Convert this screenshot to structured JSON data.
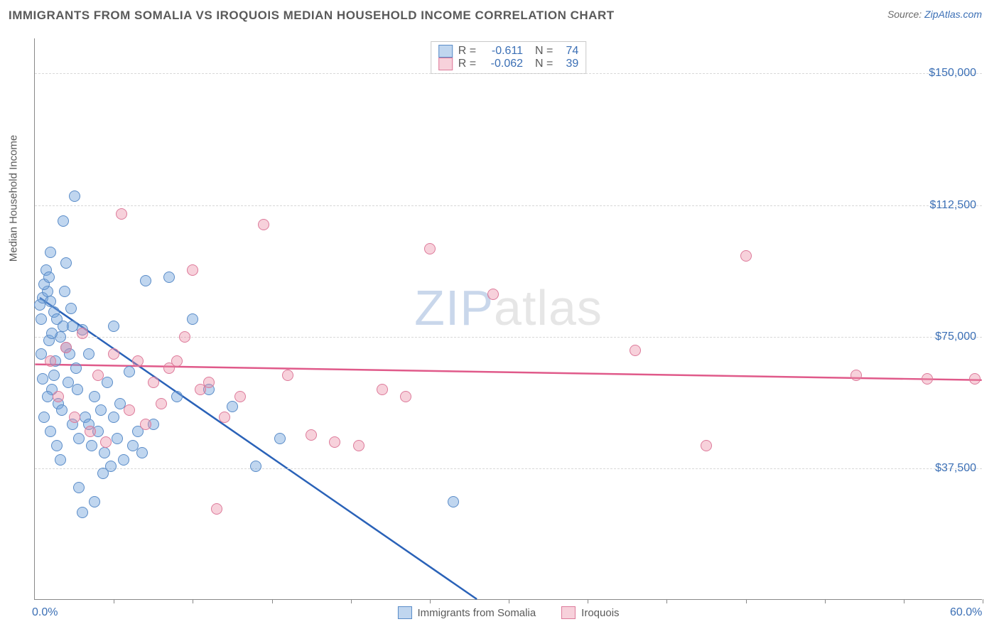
{
  "header": {
    "title": "IMMIGRANTS FROM SOMALIA VS IROQUOIS MEDIAN HOUSEHOLD INCOME CORRELATION CHART",
    "source_prefix": "Source: ",
    "source_link": "ZipAtlas.com"
  },
  "chart": {
    "type": "scatter",
    "y_axis_title": "Median Household Income",
    "background_color": "#ffffff",
    "grid_color": "#d8d8d8",
    "xlim": [
      0,
      60
    ],
    "ylim": [
      0,
      160000
    ],
    "xtick_positions": [
      5,
      10,
      15,
      20,
      25,
      30,
      35,
      40,
      45,
      50,
      55,
      60
    ],
    "xticks_labeled": [
      {
        "pos": 0,
        "label": "0.0%"
      },
      {
        "pos": 60,
        "label": "60.0%"
      }
    ],
    "yticks": [
      {
        "value": 37500,
        "label": "$37,500"
      },
      {
        "value": 75000,
        "label": "$75,000"
      },
      {
        "value": 112500,
        "label": "$112,500"
      },
      {
        "value": 150000,
        "label": "$150,000"
      }
    ],
    "watermark": {
      "zip": "ZIP",
      "atlas": "atlas"
    },
    "series": [
      {
        "name": "Immigrants from Somalia",
        "color_fill": "rgba(115,165,220,0.45)",
        "color_stroke": "#5a8cc8",
        "line_color": "#2a62b8",
        "R": "-0.611",
        "N": "74",
        "trend": {
          "x1": 0.3,
          "y1": 86000,
          "x2": 28,
          "y2": 0
        },
        "points": [
          [
            0.3,
            84000
          ],
          [
            0.5,
            86000
          ],
          [
            0.8,
            88000
          ],
          [
            0.6,
            90000
          ],
          [
            1.0,
            85000
          ],
          [
            1.2,
            82000
          ],
          [
            0.7,
            94000
          ],
          [
            1.4,
            80000
          ],
          [
            1.0,
            99000
          ],
          [
            1.6,
            75000
          ],
          [
            0.4,
            70000
          ],
          [
            1.8,
            78000
          ],
          [
            0.9,
            74000
          ],
          [
            2.0,
            72000
          ],
          [
            1.3,
            68000
          ],
          [
            0.5,
            63000
          ],
          [
            2.3,
            83000
          ],
          [
            1.1,
            60000
          ],
          [
            2.6,
            66000
          ],
          [
            0.8,
            58000
          ],
          [
            1.5,
            56000
          ],
          [
            3.0,
            77000
          ],
          [
            1.7,
            54000
          ],
          [
            0.6,
            52000
          ],
          [
            2.1,
            62000
          ],
          [
            1.9,
            88000
          ],
          [
            3.4,
            70000
          ],
          [
            2.7,
            60000
          ],
          [
            0.4,
            80000
          ],
          [
            3.8,
            58000
          ],
          [
            1.2,
            64000
          ],
          [
            4.2,
            54000
          ],
          [
            2.4,
            50000
          ],
          [
            4.6,
            62000
          ],
          [
            1.0,
            48000
          ],
          [
            5.0,
            78000
          ],
          [
            2.8,
            46000
          ],
          [
            5.4,
            56000
          ],
          [
            1.4,
            44000
          ],
          [
            6.0,
            65000
          ],
          [
            3.2,
            52000
          ],
          [
            6.5,
            48000
          ],
          [
            2.0,
            96000
          ],
          [
            7.0,
            91000
          ],
          [
            3.6,
            44000
          ],
          [
            1.6,
            40000
          ],
          [
            8.5,
            92000
          ],
          [
            4.0,
            48000
          ],
          [
            2.2,
            70000
          ],
          [
            9.0,
            58000
          ],
          [
            4.4,
            42000
          ],
          [
            2.5,
            115000
          ],
          [
            10.0,
            80000
          ],
          [
            4.8,
            38000
          ],
          [
            3.0,
            25000
          ],
          [
            11.0,
            60000
          ],
          [
            5.2,
            46000
          ],
          [
            2.8,
            32000
          ],
          [
            12.5,
            55000
          ],
          [
            5.6,
            40000
          ],
          [
            3.4,
            50000
          ],
          [
            14.0,
            38000
          ],
          [
            6.2,
            44000
          ],
          [
            3.8,
            28000
          ],
          [
            15.5,
            46000
          ],
          [
            6.8,
            42000
          ],
          [
            4.3,
            36000
          ],
          [
            26.5,
            28000
          ],
          [
            7.5,
            50000
          ],
          [
            5.0,
            52000
          ],
          [
            1.8,
            108000
          ],
          [
            2.4,
            78000
          ],
          [
            0.9,
            92000
          ],
          [
            1.1,
            76000
          ]
        ]
      },
      {
        "name": "Iroquois",
        "color_fill": "rgba(235,140,165,0.40)",
        "color_stroke": "#dd7a9a",
        "line_color": "#e05a8a",
        "R": "-0.062",
        "N": "39",
        "trend": {
          "x1": 0,
          "y1": 67000,
          "x2": 60,
          "y2": 62500
        },
        "points": [
          [
            1.0,
            68000
          ],
          [
            2.0,
            72000
          ],
          [
            1.5,
            58000
          ],
          [
            3.0,
            76000
          ],
          [
            2.5,
            52000
          ],
          [
            4.0,
            64000
          ],
          [
            3.5,
            48000
          ],
          [
            5.0,
            70000
          ],
          [
            4.5,
            45000
          ],
          [
            6.5,
            68000
          ],
          [
            5.5,
            110000
          ],
          [
            7.5,
            62000
          ],
          [
            6.0,
            54000
          ],
          [
            8.5,
            66000
          ],
          [
            7.0,
            50000
          ],
          [
            9.5,
            75000
          ],
          [
            8.0,
            56000
          ],
          [
            10.5,
            60000
          ],
          [
            9.0,
            68000
          ],
          [
            11.5,
            26000
          ],
          [
            10.0,
            94000
          ],
          [
            13.0,
            58000
          ],
          [
            11.0,
            62000
          ],
          [
            14.5,
            107000
          ],
          [
            12.0,
            52000
          ],
          [
            16.0,
            64000
          ],
          [
            17.5,
            47000
          ],
          [
            19.0,
            45000
          ],
          [
            20.5,
            44000
          ],
          [
            22.0,
            60000
          ],
          [
            23.5,
            58000
          ],
          [
            25.0,
            100000
          ],
          [
            29.0,
            87000
          ],
          [
            38.0,
            71000
          ],
          [
            42.5,
            44000
          ],
          [
            45.0,
            98000
          ],
          [
            52.0,
            64000
          ],
          [
            56.5,
            63000
          ],
          [
            59.5,
            63000
          ]
        ]
      }
    ],
    "legend_series": [
      {
        "swatch_fill": "rgba(115,165,220,0.45)",
        "swatch_stroke": "#5a8cc8",
        "label": "Immigrants from Somalia"
      },
      {
        "swatch_fill": "rgba(235,140,165,0.40)",
        "swatch_stroke": "#dd7a9a",
        "label": "Iroquois"
      }
    ]
  }
}
